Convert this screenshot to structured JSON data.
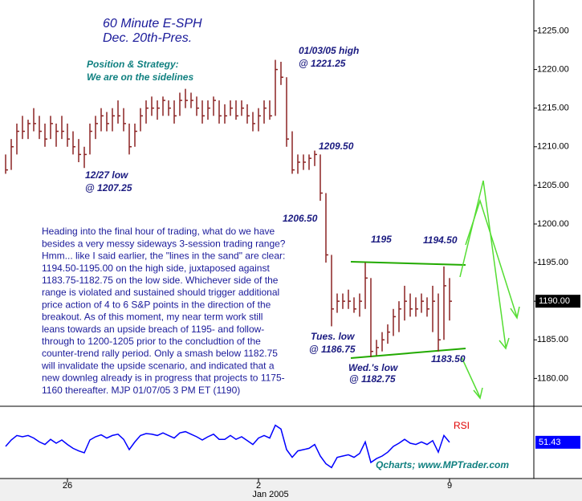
{
  "chart_data": [
    {
      "type": "ohlc",
      "title": "60 Minute E-SPH",
      "subtitle": "Dec. 20th-Pres.",
      "color": "#8b2323",
      "x": [
        1,
        2,
        3,
        4,
        5,
        6,
        7,
        8,
        9,
        10,
        11,
        12,
        13,
        14,
        15,
        16,
        17,
        18,
        19,
        20,
        21,
        22,
        23,
        24,
        25,
        26,
        27,
        28,
        29,
        30,
        31,
        32,
        33,
        34,
        35,
        36,
        37,
        38,
        39,
        40,
        41,
        42,
        43,
        44,
        45,
        46,
        47,
        48,
        49,
        50,
        51,
        52,
        53,
        54,
        55,
        56,
        57,
        58,
        59,
        60,
        61,
        62,
        63,
        64,
        65,
        66,
        67,
        68,
        69,
        70,
        71,
        72,
        73,
        74,
        75,
        76,
        77,
        78,
        79,
        80
      ],
      "high": [
        1209,
        1211,
        1213,
        1214,
        1213.5,
        1215,
        1214,
        1213,
        1214,
        1213,
        1214,
        1213,
        1212,
        1211,
        1210,
        1213,
        1214,
        1215,
        1214.5,
        1215,
        1216,
        1215,
        1213,
        1213,
        1215,
        1216,
        1216.5,
        1216,
        1216.5,
        1216,
        1216,
        1217,
        1217.5,
        1217,
        1216.5,
        1216,
        1216,
        1216.5,
        1216,
        1215.5,
        1216,
        1216,
        1216,
        1215.5,
        1214.5,
        1215,
        1216,
        1216,
        1221.25,
        1221,
        1219,
        1212,
        1209,
        1209,
        1209,
        1209.5,
        1209,
        1204,
        1196,
        1191,
        1191,
        1191.5,
        1190.5,
        1191,
        1195,
        1193,
        1185,
        1186,
        1187,
        1189,
        1190,
        1192,
        1191,
        1190.5,
        1191,
        1190.5,
        1192,
        1191,
        1194.5,
        1193
      ],
      "low": [
        1206.5,
        1207,
        1209,
        1211,
        1211,
        1212,
        1211,
        1210,
        1211,
        1210,
        1211,
        1210,
        1209,
        1208,
        1207.25,
        1209,
        1211,
        1212,
        1212,
        1212,
        1213,
        1212,
        1209,
        1210,
        1212,
        1213,
        1214,
        1213.5,
        1214,
        1214,
        1213,
        1214,
        1215,
        1215,
        1214,
        1213,
        1213.5,
        1214,
        1213,
        1213,
        1214,
        1213.5,
        1214,
        1213,
        1212,
        1212,
        1213,
        1213.5,
        1214,
        1218,
        1210,
        1206.5,
        1206.5,
        1207,
        1207,
        1207.5,
        1203,
        1195,
        1186.75,
        1188.5,
        1189,
        1189,
        1188.5,
        1188,
        1189,
        1182.75,
        1183,
        1183.5,
        1184.5,
        1185.5,
        1186,
        1187.5,
        1188,
        1188,
        1188.5,
        1188,
        1186,
        1183.5,
        1185,
        1187.5
      ],
      "close": [
        1207,
        1210,
        1212,
        1212,
        1213,
        1213,
        1212,
        1211,
        1213,
        1212,
        1212,
        1211,
        1210,
        1209,
        1209,
        1212,
        1213,
        1214,
        1213,
        1214,
        1214,
        1213,
        1210,
        1212,
        1214,
        1215,
        1215,
        1215,
        1216,
        1215,
        1214,
        1216,
        1216,
        1216,
        1215,
        1214,
        1215,
        1216,
        1214,
        1214,
        1215,
        1214,
        1215,
        1214,
        1213,
        1214,
        1215,
        1214,
        1220,
        1219,
        1211,
        1207,
        1208,
        1208,
        1208.5,
        1209,
        1204,
        1196,
        1189,
        1190,
        1190,
        1190,
        1189,
        1190,
        1193,
        1183.5,
        1184,
        1185,
        1186,
        1188,
        1189,
        1190,
        1189,
        1189,
        1190,
        1189,
        1190,
        1185,
        1192,
        1190
      ],
      "last_price": {
        "value": 1190,
        "label": "1190.00"
      },
      "xlim": [
        0,
        95
      ],
      "xticks": [
        {
          "value": 12,
          "label": "26"
        },
        {
          "value": 46,
          "label": "2"
        },
        {
          "value": 80,
          "label": "9"
        }
      ],
      "x_annotation": "Jan 2005",
      "ylim": [
        1176.4,
        1229
      ],
      "yticks": [
        {
          "value": 1180,
          "label": "1180.00"
        },
        {
          "value": 1185,
          "label": "1185.00"
        },
        {
          "value": 1190,
          "label": "1190.00"
        },
        {
          "value": 1195,
          "label": "1195.00"
        },
        {
          "value": 1200,
          "label": "1200.00"
        },
        {
          "value": 1205,
          "label": "1205.00"
        },
        {
          "value": 1210,
          "label": "1210.00"
        },
        {
          "value": 1215,
          "label": "1215.00"
        },
        {
          "value": 1220,
          "label": "1220.00"
        },
        {
          "value": 1225,
          "label": "1225.00"
        }
      ],
      "strategy": [
        "Position & Strategy:",
        "We are on the sidelines"
      ],
      "annotations": {
        "high_0103": [
          "01/03/05 high",
          "@ 1221.25"
        ],
        "low_1227": [
          "12/27 low",
          "@ 1207.25"
        ],
        "peak": "1209.50",
        "dip": "1206.50",
        "range_top": "1195",
        "range_top2": "1194.50",
        "tues_low": [
          "Tues. low",
          "@ 1186.75"
        ],
        "wed_low": [
          "Wed.'s low",
          "@ 1182.75"
        ],
        "range_bottom": "1183.50"
      },
      "commentary": [
        "Heading into the final hour of trading, what do we have",
        "besides a very messy sideways 3-session trading range?",
        "Hmm... like I said earlier, the \"lines in the sand\" are clear:",
        "1194.50-1195.00 on the high side, juxtaposed against",
        "1183.75-1182.75 on the low side. Whichever side of the",
        "range is violated and sustained should trigger additional",
        "price action of 4 to 6 S&P points in the direction of the",
        "breakout. As of this moment, my near term work still",
        "leans towards an upside breach of 1195- and follow-",
        "through to 1200-1205 prior to the concludtion of the",
        "counter-trend rally period. Only a smash below 1182.75",
        "will invalidate the upside scenario, and indicated that a",
        "new downleg already is in progress that projects to 1175-",
        "1160 thereafter.  MJP 01/07/05  3 PM ET (1190)"
      ],
      "source": "Qcharts; www.MPTrader.com"
    },
    {
      "type": "line",
      "title": "RSI",
      "color": "#0000ff",
      "title_color": "#e00000",
      "x": [
        1,
        2,
        3,
        4,
        5,
        6,
        7,
        8,
        9,
        10,
        11,
        12,
        13,
        14,
        15,
        16,
        17,
        18,
        19,
        20,
        21,
        22,
        23,
        24,
        25,
        26,
        27,
        28,
        29,
        30,
        31,
        32,
        33,
        34,
        35,
        36,
        37,
        38,
        39,
        40,
        41,
        42,
        43,
        44,
        45,
        46,
        47,
        48,
        49,
        50,
        51,
        52,
        53,
        54,
        55,
        56,
        57,
        58,
        59,
        60,
        61,
        62,
        63,
        64,
        65,
        66,
        67,
        68,
        69,
        70,
        71,
        72,
        73,
        74,
        75,
        76,
        77,
        78,
        79,
        80
      ],
      "values": [
        45,
        55,
        62,
        60,
        62,
        58,
        52,
        48,
        56,
        50,
        55,
        48,
        42,
        38,
        35,
        55,
        60,
        63,
        58,
        62,
        64,
        56,
        40,
        52,
        62,
        65,
        64,
        62,
        66,
        62,
        58,
        66,
        68,
        64,
        60,
        55,
        60,
        64,
        56,
        56,
        62,
        56,
        60,
        54,
        48,
        58,
        62,
        58,
        78,
        72,
        40,
        28,
        38,
        40,
        42,
        48,
        30,
        18,
        12,
        28,
        30,
        32,
        28,
        34,
        52,
        20,
        26,
        30,
        36,
        45,
        50,
        56,
        50,
        48,
        52,
        48,
        54,
        36,
        62,
        51.43
      ],
      "last_value": 51.43,
      "xlim": [
        0,
        95
      ],
      "ylim": [
        0,
        100
      ]
    }
  ]
}
